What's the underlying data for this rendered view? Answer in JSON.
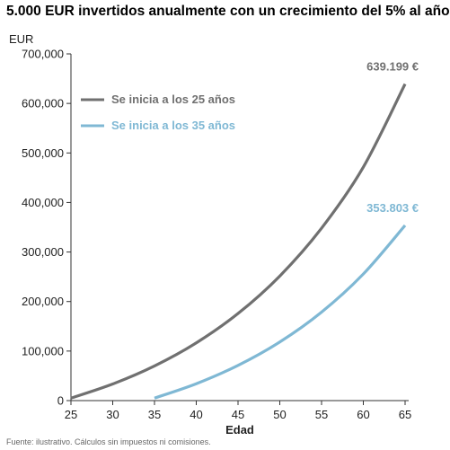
{
  "chart_data": {
    "type": "line",
    "title": "5.000 EUR invertidos anualmente con un crecimiento del 5% al año",
    "ylabel": "EUR",
    "xlabel": "Edad",
    "xlim": [
      25,
      65
    ],
    "ylim": [
      0,
      700000
    ],
    "x_ticks": [
      "25",
      "30",
      "35",
      "40",
      "45",
      "50",
      "55",
      "60",
      "65"
    ],
    "y_ticks": [
      "0",
      "100,000",
      "200,000",
      "300,000",
      "400,000",
      "500,000",
      "600,000",
      "700,000"
    ],
    "legend_position": "upper-left",
    "grid": false,
    "series": [
      {
        "name": "Se inicia a los 25 años",
        "color": "#707070",
        "end_label": "639.199 €",
        "x": [
          25,
          30,
          35,
          40,
          45,
          50,
          55,
          60,
          65
        ],
        "values": [
          5000,
          33550,
          69980,
          116480,
          175800,
          251500,
          348100,
          471400,
          639199
        ]
      },
      {
        "name": "Se inicia a los 35 años",
        "color": "#7fb8d4",
        "end_label": "353.803 €",
        "x": [
          35,
          40,
          45,
          50,
          55,
          60,
          65
        ],
        "values": [
          5000,
          34010,
          71040,
          118300,
          178600,
          255600,
          353803
        ]
      }
    ]
  },
  "footer_text": "Fuente: ilustrativo. Cálculos sin impuestos ni comisiones."
}
